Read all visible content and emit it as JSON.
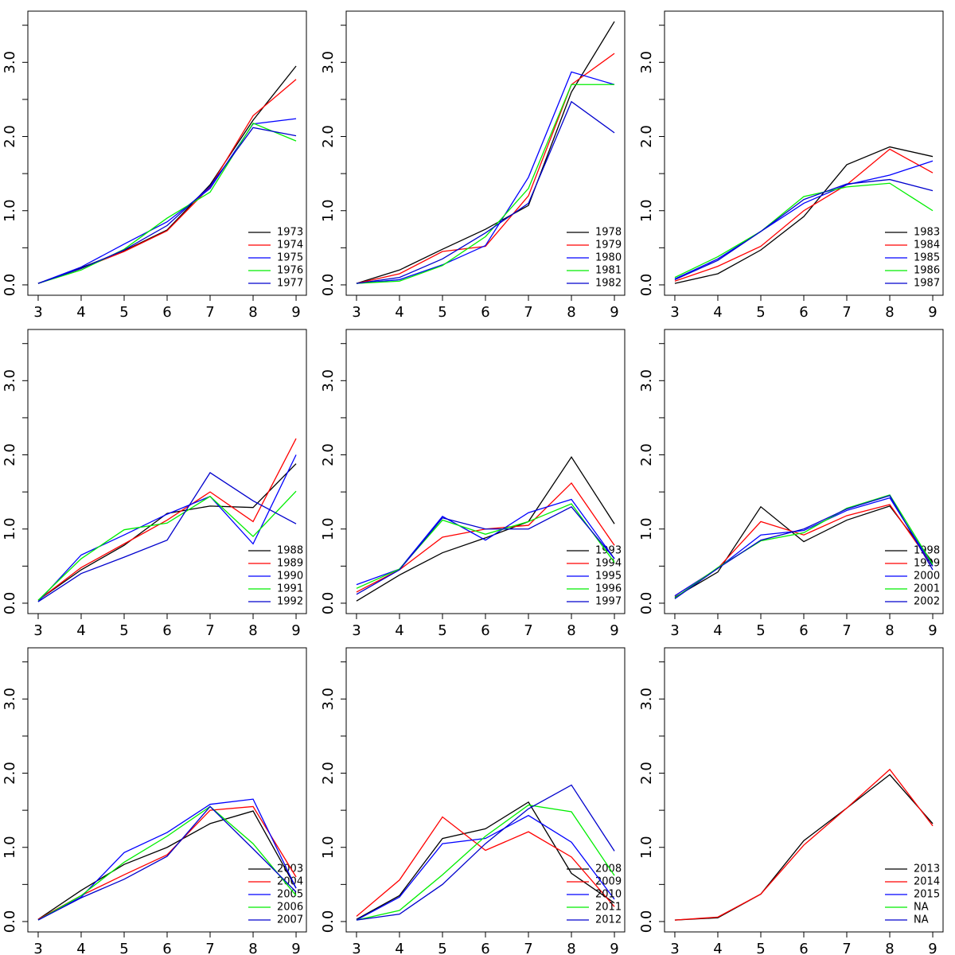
{
  "chart_data": [
    {
      "type": "line",
      "x": [
        3,
        4,
        5,
        6,
        7,
        8,
        9
      ],
      "xticks": [
        3,
        4,
        5,
        6,
        7,
        8,
        9
      ],
      "xlim": [
        2.76,
        9.24
      ],
      "ylim": [
        -0.14,
        3.69
      ],
      "yticks": [
        {
          "value": 0,
          "label": "0.0"
        },
        {
          "value": 1,
          "label": "1.0"
        },
        {
          "value": 2,
          "label": "2.0"
        },
        {
          "value": 3,
          "label": "3.0"
        }
      ],
      "minor_yticks": [
        0.5,
        1.5,
        2.5,
        3.5
      ],
      "legend": "bottomright",
      "series": [
        {
          "name": "1973",
          "color": "#000000",
          "values": [
            0.02,
            0.23,
            0.46,
            0.74,
            1.35,
            2.22,
            2.95
          ]
        },
        {
          "name": "1974",
          "color": "#ff0000",
          "values": [
            0.02,
            0.22,
            0.45,
            0.73,
            1.32,
            2.28,
            2.77
          ]
        },
        {
          "name": "1975",
          "color": "#0000ff",
          "values": [
            0.02,
            0.24,
            0.55,
            0.85,
            1.3,
            2.17,
            2.24
          ]
        },
        {
          "name": "1976",
          "color": "#00ee00",
          "values": [
            0.02,
            0.2,
            0.48,
            0.9,
            1.25,
            2.18,
            1.94
          ]
        },
        {
          "name": "1977",
          "color": "#0000cd",
          "values": [
            0.02,
            0.22,
            0.47,
            0.8,
            1.33,
            2.12,
            2.01
          ]
        }
      ]
    },
    {
      "type": "line",
      "x": [
        3,
        4,
        5,
        6,
        7,
        8,
        9
      ],
      "xticks": [
        3,
        4,
        5,
        6,
        7,
        8,
        9
      ],
      "xlim": [
        2.76,
        9.24
      ],
      "ylim": [
        -0.14,
        3.69
      ],
      "yticks": [
        {
          "value": 0,
          "label": "0.0"
        },
        {
          "value": 1,
          "label": "1.0"
        },
        {
          "value": 2,
          "label": "2.0"
        },
        {
          "value": 3,
          "label": "3.0"
        }
      ],
      "minor_yticks": [
        0.5,
        1.5,
        2.5,
        3.5
      ],
      "legend": "bottomright",
      "series": [
        {
          "name": "1978",
          "color": "#000000",
          "values": [
            0.02,
            0.2,
            0.48,
            0.75,
            1.07,
            2.6,
            3.55
          ]
        },
        {
          "name": "1979",
          "color": "#ff0000",
          "values": [
            0.02,
            0.15,
            0.45,
            0.52,
            1.2,
            2.7,
            3.12
          ]
        },
        {
          "name": "1980",
          "color": "#0000ff",
          "values": [
            0.02,
            0.07,
            0.27,
            0.53,
            1.45,
            2.87,
            2.7
          ]
        },
        {
          "name": "1981",
          "color": "#00ee00",
          "values": [
            0.02,
            0.05,
            0.26,
            0.65,
            1.3,
            2.7,
            2.7
          ]
        },
        {
          "name": "1982",
          "color": "#0000cd",
          "values": [
            0.02,
            0.1,
            0.35,
            0.7,
            1.1,
            2.47,
            2.05
          ]
        }
      ]
    },
    {
      "type": "line",
      "x": [
        3,
        4,
        5,
        6,
        7,
        8,
        9
      ],
      "xticks": [
        3,
        4,
        5,
        6,
        7,
        8,
        9
      ],
      "xlim": [
        2.76,
        9.24
      ],
      "ylim": [
        -0.14,
        3.69
      ],
      "yticks": [
        {
          "value": 0,
          "label": "0.0"
        },
        {
          "value": 1,
          "label": "1.0"
        },
        {
          "value": 2,
          "label": "2.0"
        },
        {
          "value": 3,
          "label": "3.0"
        }
      ],
      "minor_yticks": [
        0.5,
        1.5,
        2.5,
        3.5
      ],
      "legend": "bottomright",
      "series": [
        {
          "name": "1983",
          "color": "#000000",
          "values": [
            0.02,
            0.15,
            0.47,
            0.92,
            1.62,
            1.86,
            1.73
          ]
        },
        {
          "name": "1984",
          "color": "#ff0000",
          "values": [
            0.05,
            0.25,
            0.52,
            1.0,
            1.35,
            1.83,
            1.51
          ]
        },
        {
          "name": "1985",
          "color": "#0000ff",
          "values": [
            0.08,
            0.35,
            0.72,
            1.1,
            1.35,
            1.48,
            1.67
          ]
        },
        {
          "name": "1986",
          "color": "#00ee00",
          "values": [
            0.1,
            0.38,
            0.72,
            1.19,
            1.32,
            1.37,
            1.0
          ]
        },
        {
          "name": "1987",
          "color": "#0000cd",
          "values": [
            0.07,
            0.33,
            0.72,
            1.15,
            1.36,
            1.42,
            1.27
          ]
        }
      ]
    },
    {
      "type": "line",
      "x": [
        3,
        4,
        5,
        6,
        7,
        8,
        9
      ],
      "xticks": [
        3,
        4,
        5,
        6,
        7,
        8,
        9
      ],
      "xlim": [
        2.76,
        9.24
      ],
      "ylim": [
        -0.14,
        3.69
      ],
      "yticks": [
        {
          "value": 0,
          "label": "0.0"
        },
        {
          "value": 1,
          "label": "1.0"
        },
        {
          "value": 2,
          "label": "2.0"
        },
        {
          "value": 3,
          "label": "3.0"
        }
      ],
      "minor_yticks": [
        0.5,
        1.5,
        2.5,
        3.5
      ],
      "legend": "bottomright",
      "series": [
        {
          "name": "1988",
          "color": "#000000",
          "values": [
            0.04,
            0.45,
            0.78,
            1.21,
            1.31,
            1.29,
            1.88
          ]
        },
        {
          "name": "1989",
          "color": "#ff0000",
          "values": [
            0.04,
            0.48,
            0.8,
            1.12,
            1.5,
            1.1,
            2.22
          ]
        },
        {
          "name": "1990",
          "color": "#0000ff",
          "values": [
            0.02,
            0.65,
            0.92,
            1.2,
            1.44,
            0.8,
            2.0
          ]
        },
        {
          "name": "1991",
          "color": "#00ee00",
          "values": [
            0.04,
            0.6,
            0.99,
            1.08,
            1.44,
            0.9,
            1.51
          ]
        },
        {
          "name": "1992",
          "color": "#0000cd",
          "values": [
            0.02,
            0.4,
            0.62,
            0.85,
            1.76,
            1.38,
            1.07
          ]
        }
      ]
    },
    {
      "type": "line",
      "x": [
        3,
        4,
        5,
        6,
        7,
        8,
        9
      ],
      "xticks": [
        3,
        4,
        5,
        6,
        7,
        8,
        9
      ],
      "xlim": [
        2.76,
        9.24
      ],
      "ylim": [
        -0.14,
        3.69
      ],
      "yticks": [
        {
          "value": 0,
          "label": "0.0"
        },
        {
          "value": 1,
          "label": "1.0"
        },
        {
          "value": 2,
          "label": "2.0"
        },
        {
          "value": 3,
          "label": "3.0"
        }
      ],
      "minor_yticks": [
        0.5,
        1.5,
        2.5,
        3.5
      ],
      "legend": "bottomright",
      "series": [
        {
          "name": "1993",
          "color": "#000000",
          "values": [
            0.03,
            0.38,
            0.68,
            0.88,
            1.1,
            1.97,
            1.07
          ]
        },
        {
          "name": "1994",
          "color": "#ff0000",
          "values": [
            0.15,
            0.45,
            0.89,
            1.0,
            1.05,
            1.62,
            0.78
          ]
        },
        {
          "name": "1995",
          "color": "#0000ff",
          "values": [
            0.25,
            0.46,
            1.17,
            0.85,
            1.22,
            1.4,
            0.6
          ]
        },
        {
          "name": "1996",
          "color": "#00ee00",
          "values": [
            0.2,
            0.46,
            1.12,
            0.93,
            1.1,
            1.34,
            0.55
          ]
        },
        {
          "name": "1997",
          "color": "#0000cd",
          "values": [
            0.12,
            0.45,
            1.15,
            1.0,
            1.0,
            1.3,
            0.6
          ]
        }
      ]
    },
    {
      "type": "line",
      "x": [
        3,
        4,
        5,
        6,
        7,
        8,
        9
      ],
      "xticks": [
        3,
        4,
        5,
        6,
        7,
        8,
        9
      ],
      "xlim": [
        2.76,
        9.24
      ],
      "ylim": [
        -0.14,
        3.69
      ],
      "yticks": [
        {
          "value": 0,
          "label": "0.0"
        },
        {
          "value": 1,
          "label": "1.0"
        },
        {
          "value": 2,
          "label": "2.0"
        },
        {
          "value": 3,
          "label": "3.0"
        }
      ],
      "minor_yticks": [
        0.5,
        1.5,
        2.5,
        3.5
      ],
      "legend": "bottomright",
      "series": [
        {
          "name": "1998",
          "color": "#000000",
          "values": [
            0.08,
            0.42,
            1.3,
            0.83,
            1.12,
            1.31,
            0.55
          ]
        },
        {
          "name": "1999",
          "color": "#ff0000",
          "values": [
            0.1,
            0.47,
            1.1,
            0.92,
            1.18,
            1.33,
            0.5
          ]
        },
        {
          "name": "2000",
          "color": "#0000ff",
          "values": [
            0.1,
            0.47,
            0.92,
            0.98,
            1.25,
            1.42,
            0.5
          ]
        },
        {
          "name": "2001",
          "color": "#00ee00",
          "values": [
            0.07,
            0.48,
            0.84,
            0.95,
            1.28,
            1.46,
            0.52
          ]
        },
        {
          "name": "2002",
          "color": "#0000cd",
          "values": [
            0.06,
            0.47,
            0.85,
            1.0,
            1.27,
            1.45,
            0.45
          ]
        }
      ]
    },
    {
      "type": "line",
      "x": [
        3,
        4,
        5,
        6,
        7,
        8,
        9
      ],
      "xticks": [
        3,
        4,
        5,
        6,
        7,
        8,
        9
      ],
      "xlim": [
        2.76,
        9.24
      ],
      "ylim": [
        -0.14,
        3.69
      ],
      "yticks": [
        {
          "value": 0,
          "label": "0.0"
        },
        {
          "value": 1,
          "label": "1.0"
        },
        {
          "value": 2,
          "label": "2.0"
        },
        {
          "value": 3,
          "label": "3.0"
        }
      ],
      "minor_yticks": [
        0.5,
        1.5,
        2.5,
        3.5
      ],
      "legend": "bottomright",
      "series": [
        {
          "name": "2003",
          "color": "#000000",
          "values": [
            0.03,
            0.42,
            0.77,
            1.0,
            1.32,
            1.49,
            0.45
          ]
        },
        {
          "name": "2004",
          "color": "#ff0000",
          "values": [
            0.03,
            0.35,
            0.63,
            0.9,
            1.5,
            1.55,
            0.6
          ]
        },
        {
          "name": "2005",
          "color": "#0000ff",
          "values": [
            0.02,
            0.33,
            0.93,
            1.2,
            1.58,
            1.65,
            0.45
          ]
        },
        {
          "name": "2006",
          "color": "#00ee00",
          "values": [
            0.02,
            0.35,
            0.8,
            1.15,
            1.55,
            1.05,
            0.35
          ]
        },
        {
          "name": "2007",
          "color": "#0000cd",
          "values": [
            0.02,
            0.32,
            0.57,
            0.88,
            1.55,
            0.98,
            0.4
          ]
        }
      ]
    },
    {
      "type": "line",
      "x": [
        3,
        4,
        5,
        6,
        7,
        8,
        9
      ],
      "xticks": [
        3,
        4,
        5,
        6,
        7,
        8,
        9
      ],
      "xlim": [
        2.76,
        9.24
      ],
      "ylim": [
        -0.14,
        3.69
      ],
      "yticks": [
        {
          "value": 0,
          "label": "0.0"
        },
        {
          "value": 1,
          "label": "1.0"
        },
        {
          "value": 2,
          "label": "2.0"
        },
        {
          "value": 3,
          "label": "3.0"
        }
      ],
      "minor_yticks": [
        0.5,
        1.5,
        2.5,
        3.5
      ],
      "legend": "bottomright",
      "series": [
        {
          "name": "2008",
          "color": "#000000",
          "values": [
            0.03,
            0.35,
            1.12,
            1.25,
            1.61,
            0.65,
            0.25
          ]
        },
        {
          "name": "2009",
          "color": "#ff0000",
          "values": [
            0.07,
            0.56,
            1.41,
            0.96,
            1.21,
            0.87,
            0.2
          ]
        },
        {
          "name": "2010",
          "color": "#0000ff",
          "values": [
            0.02,
            0.33,
            1.05,
            1.12,
            1.43,
            1.07,
            0.3
          ]
        },
        {
          "name": "2011",
          "color": "#00ee00",
          "values": [
            0.02,
            0.15,
            0.63,
            1.15,
            1.57,
            1.48,
            0.62
          ]
        },
        {
          "name": "2012",
          "color": "#0000cd",
          "values": [
            0.02,
            0.1,
            0.5,
            1.05,
            1.52,
            1.84,
            0.95
          ]
        }
      ]
    },
    {
      "type": "line",
      "x": [
        3,
        4,
        5,
        6,
        7,
        8,
        9
      ],
      "xticks": [
        3,
        4,
        5,
        6,
        7,
        8,
        9
      ],
      "xlim": [
        2.76,
        9.24
      ],
      "ylim": [
        -0.14,
        3.69
      ],
      "yticks": [
        {
          "value": 0,
          "label": "0.0"
        },
        {
          "value": 1,
          "label": "1.0"
        },
        {
          "value": 2,
          "label": "2.0"
        },
        {
          "value": 3,
          "label": "3.0"
        }
      ],
      "minor_yticks": [
        0.5,
        1.5,
        2.5,
        3.5
      ],
      "legend": "bottomright",
      "series": [
        {
          "name": "2013",
          "color": "#000000",
          "values": [
            0.02,
            0.05,
            0.37,
            1.09,
            1.53,
            1.98,
            1.32
          ]
        },
        {
          "name": "2014",
          "color": "#ff0000",
          "values": [
            0.02,
            0.06,
            0.37,
            1.03,
            1.53,
            2.05,
            1.29
          ]
        },
        {
          "name": "2015",
          "color": "#0000ff",
          "values": [
            null,
            null,
            null,
            null,
            null,
            null,
            null
          ]
        },
        {
          "name": "NA",
          "color": "#00ee00",
          "values": [
            null,
            null,
            null,
            null,
            null,
            null,
            null
          ]
        },
        {
          "name": "NA",
          "color": "#0000cd",
          "values": [
            null,
            null,
            null,
            null,
            null,
            null,
            null
          ]
        }
      ]
    }
  ]
}
